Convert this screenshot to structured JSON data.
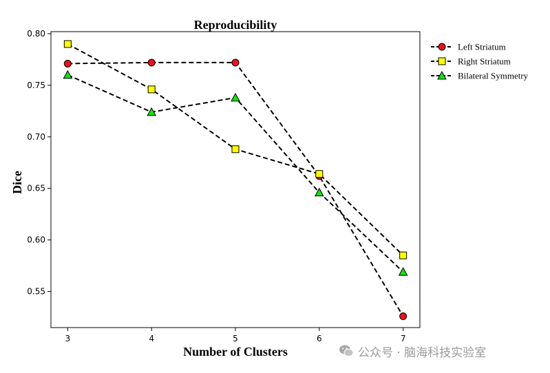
{
  "chart_data": {
    "type": "line",
    "title": "Reproducibility",
    "xlabel": "Number of Clusters",
    "ylabel": "Dice",
    "x": [
      3,
      4,
      5,
      6,
      7
    ],
    "xticks": [
      "3",
      "4",
      "5",
      "6",
      "7"
    ],
    "yticks": [
      "0.55",
      "0.60",
      "0.65",
      "0.70",
      "0.75",
      "0.80"
    ],
    "xlim": [
      2.8,
      7.2
    ],
    "ylim": [
      0.515,
      0.802
    ],
    "line_style": "dashed",
    "line_color": "#000000",
    "grid": false,
    "legend_position": "outside-top-right",
    "series": [
      {
        "name": "Left Striatum",
        "marker": "circle",
        "color": "#e8131b",
        "values": [
          0.771,
          0.772,
          0.772,
          0.662,
          0.526
        ]
      },
      {
        "name": "Right Striatum",
        "marker": "square",
        "color": "#ffff00",
        "values": [
          0.79,
          0.746,
          0.688,
          0.664,
          0.585
        ]
      },
      {
        "name": "Bilateral Symmetry",
        "marker": "triangle",
        "color": "#16e016",
        "values": [
          0.76,
          0.724,
          0.738,
          0.646,
          0.569
        ]
      }
    ]
  },
  "watermark": {
    "icon": "wechat-icon",
    "text": "公众号 · 脑海科技实验室"
  }
}
